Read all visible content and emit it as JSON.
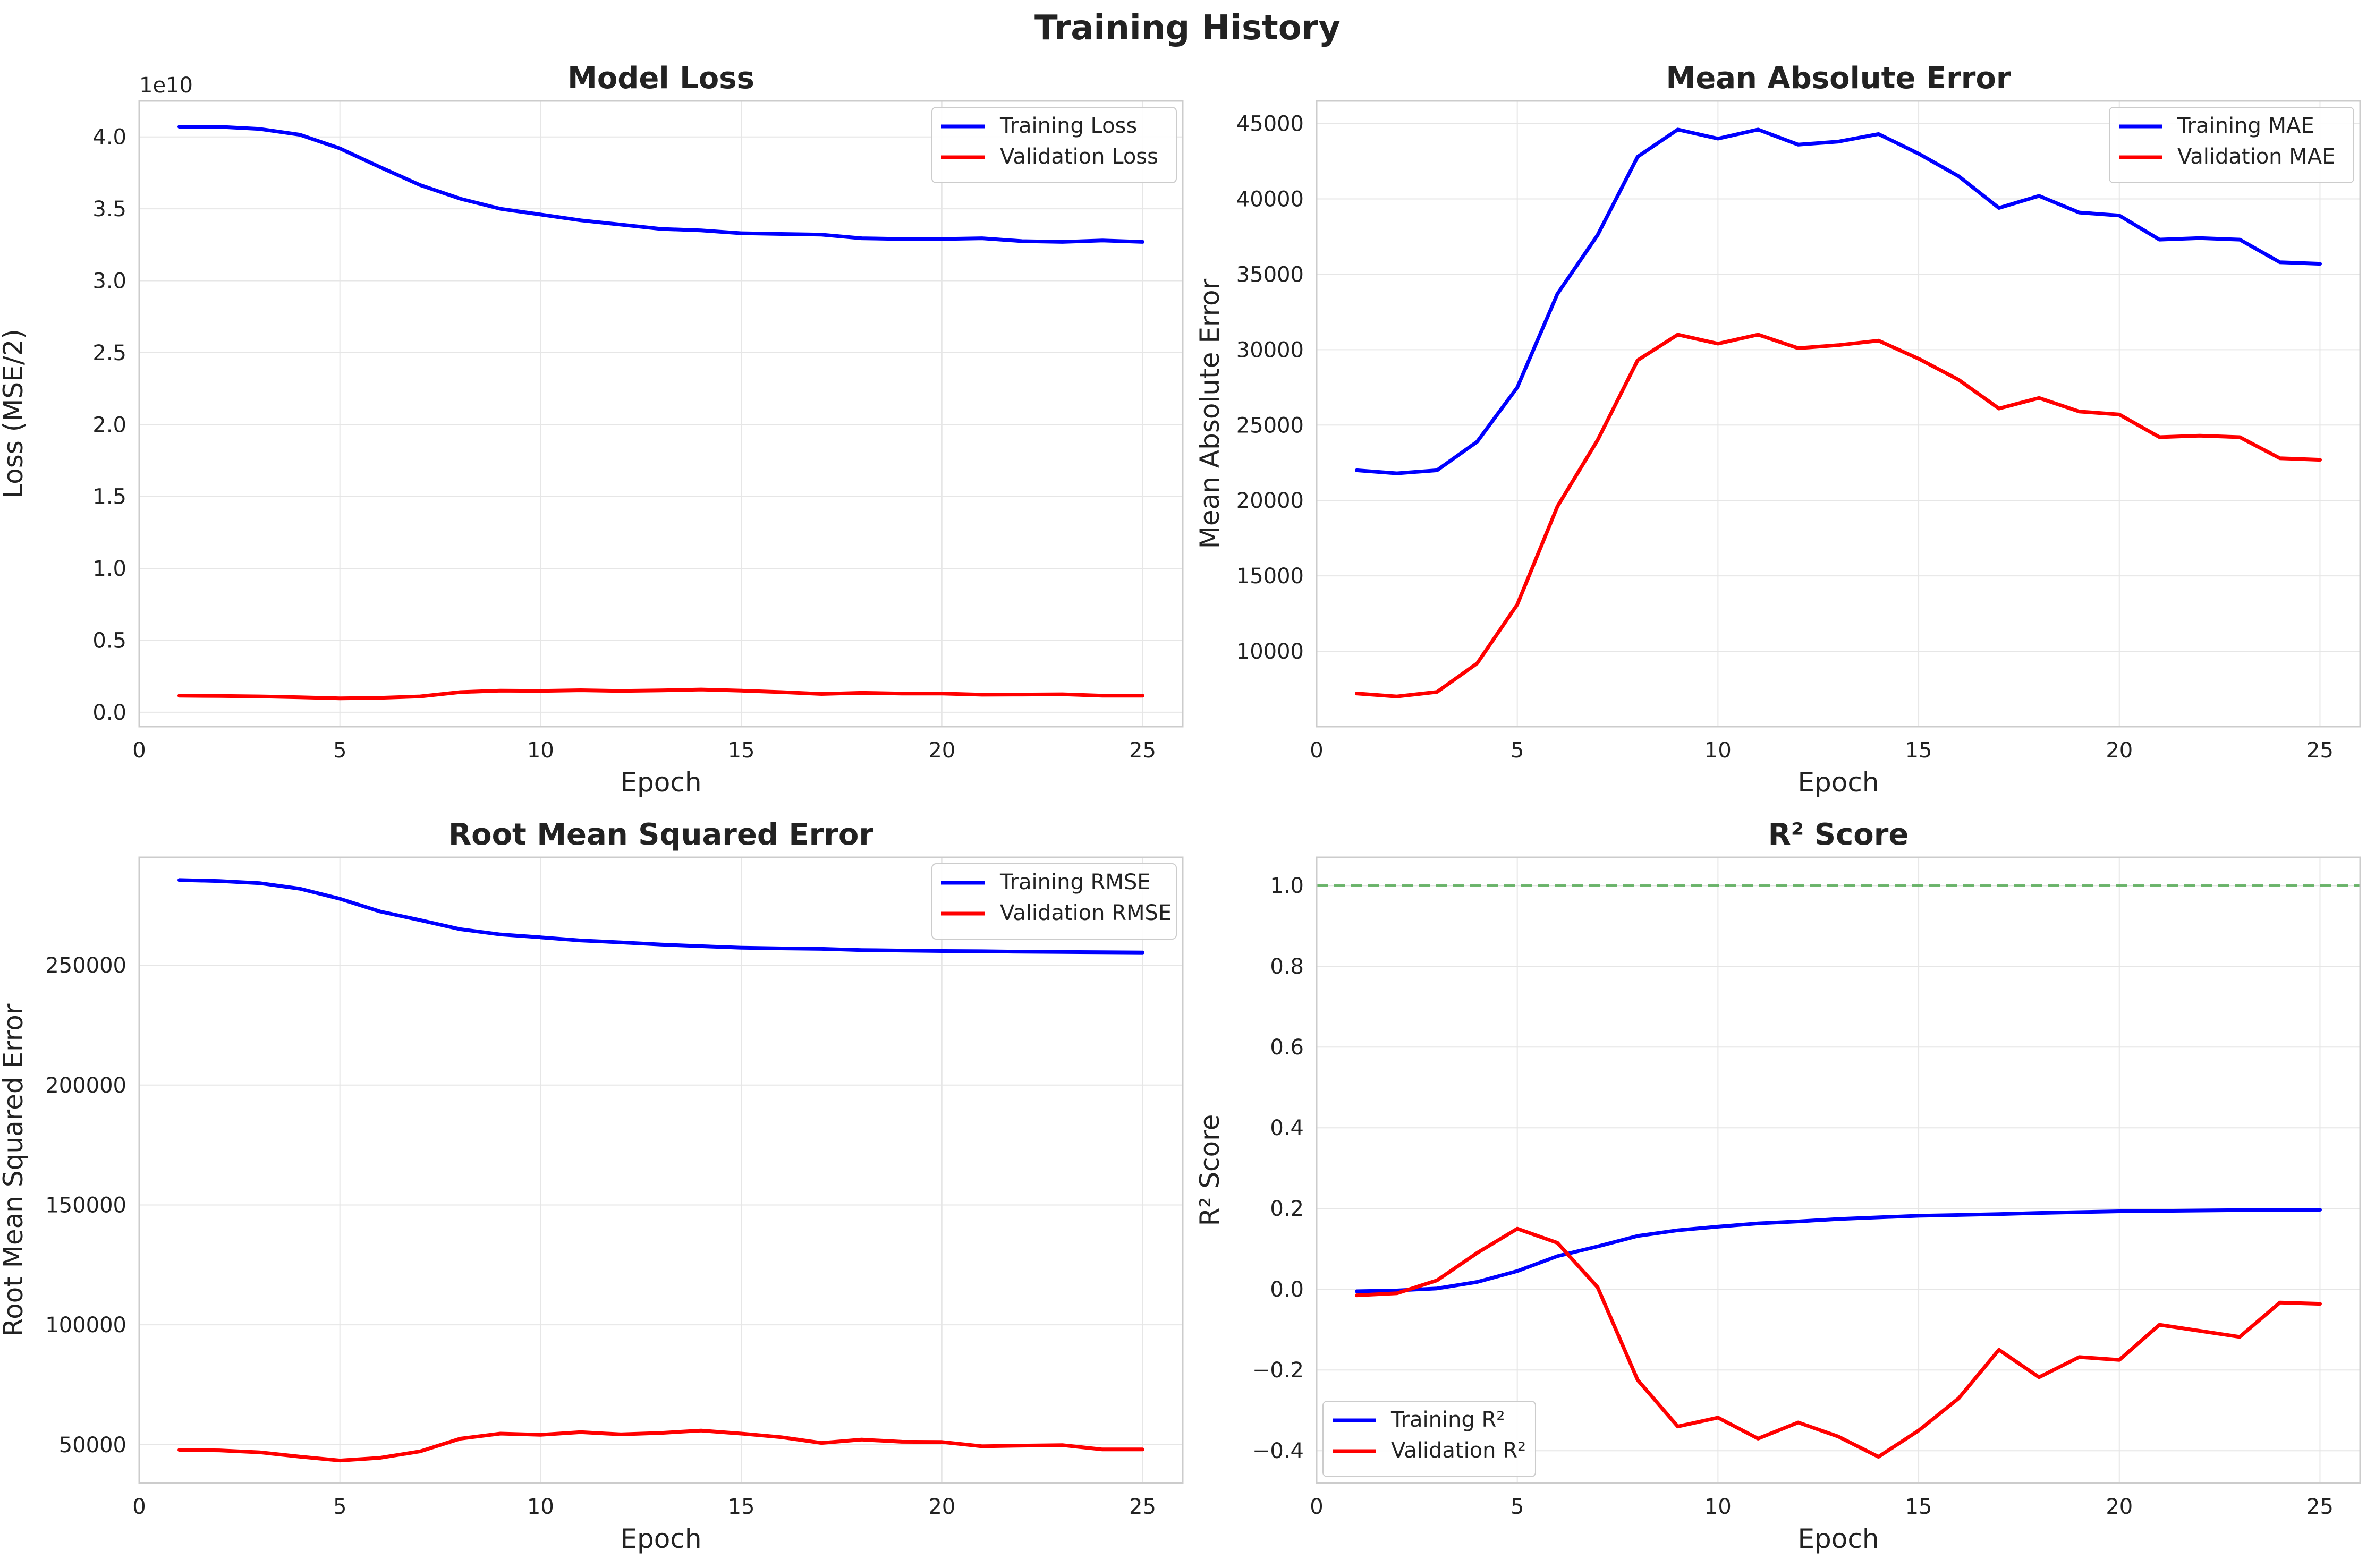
{
  "figure": {
    "title": "Training History"
  },
  "chart_data": [
    {
      "type": "line",
      "title": "Model Loss",
      "xlabel": "Epoch",
      "ylabel": "Loss (MSE/2)",
      "y_offset_label": "1e10",
      "x": [
        1,
        2,
        3,
        4,
        5,
        6,
        7,
        8,
        9,
        10,
        11,
        12,
        13,
        14,
        15,
        16,
        17,
        18,
        19,
        20,
        21,
        22,
        23,
        24,
        25
      ],
      "xlim": [
        0,
        26
      ],
      "ylim": [
        -0.1,
        4.25
      ],
      "xticks": [
        0,
        5,
        10,
        15,
        20,
        25
      ],
      "yticks": [
        0.0,
        0.5,
        1.0,
        1.5,
        2.0,
        2.5,
        3.0,
        3.5,
        4.0
      ],
      "ytick_labels": [
        "0.0",
        "0.5",
        "1.0",
        "1.5",
        "2.0",
        "2.5",
        "3.0",
        "3.5",
        "4.0"
      ],
      "grid": true,
      "legend": "upper right",
      "series": [
        {
          "name": "Training Loss",
          "color": "#0000ff",
          "values": [
            4.07,
            4.07,
            4.055,
            4.015,
            3.92,
            3.79,
            3.665,
            3.57,
            3.5,
            3.46,
            3.42,
            3.39,
            3.36,
            3.35,
            3.33,
            3.325,
            3.32,
            3.295,
            3.29,
            3.29,
            3.295,
            3.275,
            3.27,
            3.28,
            3.27
          ]
        },
        {
          "name": "Validation Loss",
          "color": "#ff0000",
          "values": [
            0.115,
            0.113,
            0.11,
            0.104,
            0.097,
            0.1,
            0.11,
            0.14,
            0.15,
            0.148,
            0.153,
            0.148,
            0.152,
            0.158,
            0.15,
            0.14,
            0.127,
            0.135,
            0.13,
            0.13,
            0.122,
            0.123,
            0.125,
            0.115,
            0.115
          ]
        }
      ]
    },
    {
      "type": "line",
      "title": "Mean Absolute Error",
      "xlabel": "Epoch",
      "ylabel": "Mean Absolute Error",
      "x": [
        1,
        2,
        3,
        4,
        5,
        6,
        7,
        8,
        9,
        10,
        11,
        12,
        13,
        14,
        15,
        16,
        17,
        18,
        19,
        20,
        21,
        22,
        23,
        24,
        25
      ],
      "xlim": [
        0,
        26
      ],
      "ylim": [
        5000,
        46500
      ],
      "xticks": [
        0,
        5,
        10,
        15,
        20,
        25
      ],
      "yticks": [
        10000,
        15000,
        20000,
        25000,
        30000,
        35000,
        40000,
        45000
      ],
      "ytick_labels": [
        "10000",
        "15000",
        "20000",
        "25000",
        "30000",
        "35000",
        "40000",
        "45000"
      ],
      "grid": true,
      "legend": "upper right",
      "series": [
        {
          "name": "Training MAE",
          "color": "#0000ff",
          "values": [
            22000,
            21800,
            22000,
            23900,
            27500,
            33700,
            37600,
            42800,
            44600,
            44000,
            44600,
            43600,
            43800,
            44300,
            43000,
            41500,
            39400,
            40200,
            39100,
            38900,
            37300,
            37400,
            37300,
            35800,
            35700
          ]
        },
        {
          "name": "Validation MAE",
          "color": "#ff0000",
          "values": [
            7200,
            7000,
            7300,
            9200,
            13100,
            19600,
            24000,
            29300,
            31000,
            30400,
            31000,
            30100,
            30300,
            30600,
            29400,
            28000,
            26100,
            26800,
            25900,
            25700,
            24200,
            24300,
            24200,
            22800,
            22700
          ]
        }
      ]
    },
    {
      "type": "line",
      "title": "Root Mean Squared Error",
      "xlabel": "Epoch",
      "ylabel": "Root Mean Squared Error",
      "x": [
        1,
        2,
        3,
        4,
        5,
        6,
        7,
        8,
        9,
        10,
        11,
        12,
        13,
        14,
        15,
        16,
        17,
        18,
        19,
        20,
        21,
        22,
        23,
        24,
        25
      ],
      "xlim": [
        0,
        26
      ],
      "ylim": [
        34000,
        295000
      ],
      "xticks": [
        0,
        5,
        10,
        15,
        20,
        25
      ],
      "yticks": [
        50000,
        100000,
        150000,
        200000,
        250000
      ],
      "ytick_labels": [
        "50000",
        "100000",
        "150000",
        "200000",
        "250000"
      ],
      "grid": true,
      "legend": "upper right",
      "series": [
        {
          "name": "Training RMSE",
          "color": "#0000ff",
          "values": [
            285500,
            285100,
            284200,
            281900,
            277700,
            272400,
            268800,
            265000,
            262800,
            261600,
            260300,
            259500,
            258600,
            257900,
            257300,
            257000,
            256800,
            256300,
            256100,
            255900,
            255800,
            255600,
            255500,
            255400,
            255300
          ]
        },
        {
          "name": "Validation RMSE",
          "color": "#ff0000",
          "values": [
            47800,
            47600,
            46800,
            45000,
            43400,
            44500,
            47200,
            52500,
            54600,
            54100,
            55200,
            54300,
            54900,
            55900,
            54600,
            53100,
            50700,
            52100,
            51200,
            51100,
            49300,
            49600,
            49800,
            48000,
            48000
          ]
        }
      ]
    },
    {
      "type": "line",
      "title": "R² Score",
      "xlabel": "Epoch",
      "ylabel": "R² Score",
      "x": [
        1,
        2,
        3,
        4,
        5,
        6,
        7,
        8,
        9,
        10,
        11,
        12,
        13,
        14,
        15,
        16,
        17,
        18,
        19,
        20,
        21,
        22,
        23,
        24,
        25
      ],
      "xlim": [
        0,
        26
      ],
      "ylim": [
        -0.48,
        1.07
      ],
      "xticks": [
        0,
        5,
        10,
        15,
        20,
        25
      ],
      "yticks": [
        -0.4,
        -0.2,
        0.0,
        0.2,
        0.4,
        0.6,
        0.8,
        1.0
      ],
      "ytick_labels": [
        "−0.4",
        "−0.2",
        "0.0",
        "0.2",
        "0.4",
        "0.6",
        "0.8",
        "1.0"
      ],
      "grid": true,
      "legend": "lower left",
      "reference_line": {
        "y": 1.0,
        "color": "#4ca64c",
        "style": "dashed"
      },
      "series": [
        {
          "name": "Training R²",
          "color": "#0000ff",
          "values": [
            -0.005,
            -0.003,
            0.002,
            0.018,
            0.045,
            0.082,
            0.106,
            0.132,
            0.146,
            0.155,
            0.163,
            0.168,
            0.174,
            0.178,
            0.182,
            0.184,
            0.186,
            0.189,
            0.191,
            0.193,
            0.194,
            0.195,
            0.196,
            0.197,
            0.197
          ]
        },
        {
          "name": "Validation R²",
          "color": "#ff0000",
          "values": [
            -0.015,
            -0.01,
            0.022,
            0.09,
            0.15,
            0.115,
            0.005,
            -0.225,
            -0.34,
            -0.318,
            -0.37,
            -0.33,
            -0.365,
            -0.415,
            -0.35,
            -0.27,
            -0.15,
            -0.218,
            -0.168,
            -0.175,
            -0.088,
            -0.103,
            -0.118,
            -0.033,
            -0.036
          ]
        }
      ]
    }
  ]
}
